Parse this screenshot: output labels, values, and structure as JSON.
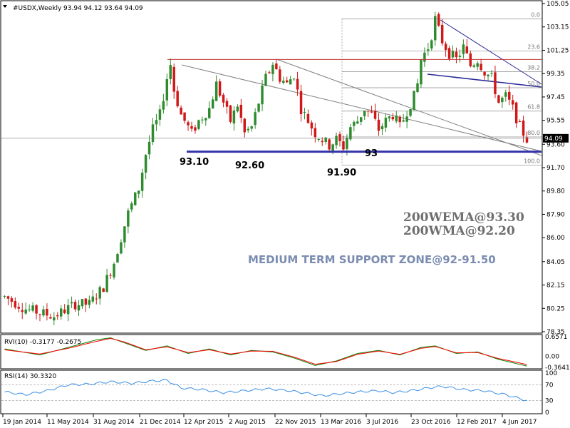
{
  "chart_data": {
    "type": "candlestick",
    "title": "#USDX,Weekly",
    "ohlc_readout": "93.94 94.12 93.64 94.09",
    "price_axis": {
      "ticks": [
        "105.05",
        "103.15",
        "101.25",
        "99.35",
        "97.45",
        "95.55",
        "93.60",
        "91.70",
        "89.80",
        "87.90",
        "86.00",
        "84.05",
        "82.15",
        "80.25",
        "78.35"
      ],
      "ylim": [
        78.35,
        105.05
      ]
    },
    "current_price": "94.09",
    "x_ticks": [
      "19 Jan 2014",
      "11 May 2014",
      "31 Aug 2014",
      "21 Dec 2014",
      "12 Apr 2015",
      "2 Aug 2015",
      "22 Nov 2015",
      "13 Mar 2016",
      "3 Jul 2016",
      "23 Oct 2016",
      "12 Feb 2017",
      "4 Jun 2017"
    ],
    "fib_levels": [
      {
        "label": "0.0",
        "price": 103.8
      },
      {
        "label": "23.6",
        "price": 101.2
      },
      {
        "label": "38.2",
        "price": 99.5
      },
      {
        "label": "50.0",
        "price": 98.2
      },
      {
        "label": "61.8",
        "price": 96.3
      },
      {
        "label": "80.0",
        "price": 94.2
      },
      {
        "label": "100.0",
        "price": 91.9
      }
    ],
    "annotations": {
      "low_1": "93.10",
      "low_2": "92.60",
      "low_3": "91.90",
      "support_level": "93",
      "ema_note": "200WEMA@93.30",
      "wma_note": "200WMA@92.20",
      "support_zone": "MEDIUM TERM SUPPORT ZONE@92-91.50"
    },
    "support_price": 93.0,
    "resistance_price": 100.5,
    "price_path_key": [
      [
        0,
        81.2
      ],
      [
        6,
        80.2
      ],
      [
        14,
        79.6
      ],
      [
        20,
        80.6
      ],
      [
        24,
        80.6
      ],
      [
        28,
        82.0
      ],
      [
        31,
        84.0
      ],
      [
        33,
        86.0
      ],
      [
        35,
        88.0
      ],
      [
        38,
        90.0
      ],
      [
        40,
        92.8
      ],
      [
        42,
        94.8
      ],
      [
        44,
        96.0
      ],
      [
        46,
        99.0
      ],
      [
        47,
        100.1
      ],
      [
        48,
        98.0
      ],
      [
        50,
        96.0
      ],
      [
        53,
        94.5
      ],
      [
        55,
        95.5
      ],
      [
        58,
        96.5
      ],
      [
        60,
        98.5
      ],
      [
        62,
        97.0
      ],
      [
        64,
        95.5
      ],
      [
        66,
        96.8
      ],
      [
        68,
        94.5
      ],
      [
        70,
        95.0
      ],
      [
        72,
        97.0
      ],
      [
        74,
        99.0
      ],
      [
        76,
        100.2
      ],
      [
        78,
        99.0
      ],
      [
        80,
        98.5
      ],
      [
        82,
        99.3
      ],
      [
        84,
        96.5
      ],
      [
        86,
        95.5
      ],
      [
        88,
        94.5
      ],
      [
        90,
        94.0
      ],
      [
        92,
        93.5
      ],
      [
        94,
        94.0
      ],
      [
        96,
        93.4
      ],
      [
        98,
        95.0
      ],
      [
        100,
        95.5
      ],
      [
        102,
        96.5
      ],
      [
        104,
        96.0
      ],
      [
        106,
        94.8
      ],
      [
        108,
        95.5
      ],
      [
        110,
        96.0
      ],
      [
        112,
        95.0
      ],
      [
        114,
        96.3
      ],
      [
        116,
        97.5
      ],
      [
        117,
        98.5
      ],
      [
        118,
        100.5
      ],
      [
        120,
        101.5
      ],
      [
        121,
        102.5
      ],
      [
        122,
        103.8
      ],
      [
        124,
        102.0
      ],
      [
        126,
        101.0
      ],
      [
        128,
        100.5
      ],
      [
        130,
        101.5
      ],
      [
        132,
        100.0
      ],
      [
        134,
        100.5
      ],
      [
        136,
        99.5
      ],
      [
        138,
        99.0
      ],
      [
        140,
        97.0
      ],
      [
        142,
        97.5
      ],
      [
        144,
        96.5
      ],
      [
        146,
        95.0
      ],
      [
        147,
        94.5
      ],
      [
        148,
        94.0
      ]
    ],
    "rvi": {
      "label": "RVI(10) -0.3177 -0.2675",
      "ticks": [
        "0.6571",
        "0.00",
        "-0.3641"
      ],
      "ylim": [
        -0.3641,
        0.6571
      ],
      "series": [
        {
          "color": "#008000",
          "key": [
            [
              0,
              0.25
            ],
            [
              10,
              0.05
            ],
            [
              18,
              0.3
            ],
            [
              26,
              0.55
            ],
            [
              30,
              0.62
            ],
            [
              34,
              0.45
            ],
            [
              40,
              0.2
            ],
            [
              46,
              0.35
            ],
            [
              52,
              0.1
            ],
            [
              58,
              0.25
            ],
            [
              64,
              0.05
            ],
            [
              70,
              0.2
            ],
            [
              76,
              0.15
            ],
            [
              82,
              -0.05
            ],
            [
              88,
              -0.3
            ],
            [
              94,
              -0.15
            ],
            [
              100,
              0.1
            ],
            [
              106,
              0.2
            ],
            [
              112,
              0.05
            ],
            [
              118,
              0.3
            ],
            [
              122,
              0.35
            ],
            [
              128,
              0.1
            ],
            [
              134,
              0.15
            ],
            [
              140,
              -0.1
            ],
            [
              148,
              -0.32
            ]
          ]
        },
        {
          "color": "#ff0000",
          "key": [
            [
              0,
              0.22
            ],
            [
              10,
              0.08
            ],
            [
              18,
              0.27
            ],
            [
              26,
              0.5
            ],
            [
              30,
              0.6
            ],
            [
              34,
              0.48
            ],
            [
              40,
              0.22
            ],
            [
              46,
              0.32
            ],
            [
              52,
              0.13
            ],
            [
              58,
              0.22
            ],
            [
              64,
              0.08
            ],
            [
              70,
              0.18
            ],
            [
              76,
              0.17
            ],
            [
              82,
              -0.02
            ],
            [
              88,
              -0.26
            ],
            [
              94,
              -0.17
            ],
            [
              100,
              0.07
            ],
            [
              106,
              0.18
            ],
            [
              112,
              0.07
            ],
            [
              118,
              0.27
            ],
            [
              122,
              0.33
            ],
            [
              128,
              0.12
            ],
            [
              134,
              0.13
            ],
            [
              140,
              -0.07
            ],
            [
              148,
              -0.27
            ]
          ]
        }
      ]
    },
    "rsi": {
      "label": "RSI(14) 30.3320",
      "ticks": [
        "100",
        "70",
        "30",
        "0"
      ],
      "ylim": [
        0,
        100
      ],
      "levels": [
        70,
        30
      ],
      "key": [
        [
          0,
          52
        ],
        [
          6,
          45
        ],
        [
          12,
          55
        ],
        [
          18,
          70
        ],
        [
          24,
          72
        ],
        [
          30,
          78
        ],
        [
          36,
          74
        ],
        [
          42,
          80
        ],
        [
          46,
          82
        ],
        [
          50,
          62
        ],
        [
          56,
          58
        ],
        [
          62,
          50
        ],
        [
          68,
          55
        ],
        [
          74,
          60
        ],
        [
          80,
          56
        ],
        [
          86,
          48
        ],
        [
          90,
          42
        ],
        [
          96,
          48
        ],
        [
          100,
          52
        ],
        [
          106,
          55
        ],
        [
          110,
          50
        ],
        [
          116,
          56
        ],
        [
          120,
          62
        ],
        [
          124,
          66
        ],
        [
          130,
          58
        ],
        [
          136,
          55
        ],
        [
          142,
          45
        ],
        [
          148,
          30
        ]
      ]
    }
  }
}
